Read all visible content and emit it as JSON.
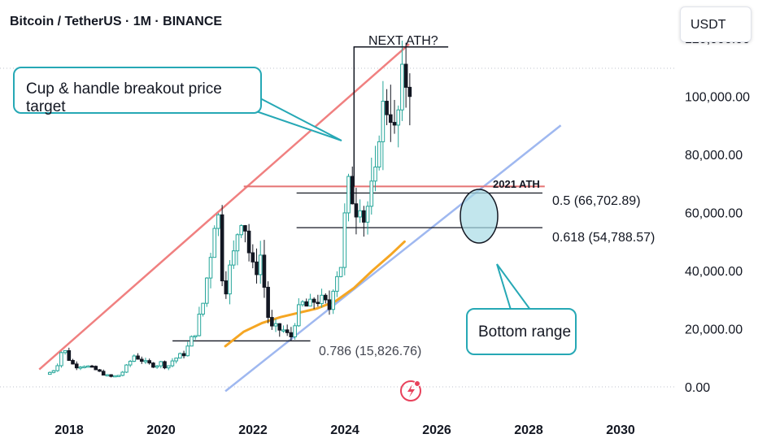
{
  "header": {
    "title": "Bitcoin / TetherUS · 1M · BINANCE",
    "currency": "USDT"
  },
  "annotations": {
    "cup_handle_label": "Cup & handle breakout price target",
    "bottom_range_label": "Bottom range",
    "next_ath_label": "NEXT ATH?",
    "ath_2021_label": "2021 ATH",
    "fib_05": "0.5 (66,702.89)",
    "fib_0618": "0.618 (54,788.57)",
    "fib_0786": "0.786 (15,826.76)"
  },
  "colors": {
    "candle_up": "#26a69a",
    "candle_down": "#131722",
    "resistance_line": "#f08080",
    "support_line": "#9fb8f0",
    "moving_average": "#f5a623",
    "ath_line": "#e57373",
    "callout_border": "#26a8b5",
    "highlight_circle": "#a8dbe6"
  },
  "chart_data": {
    "type": "candlestick",
    "title": "Bitcoin / TetherUS · 1M · BINANCE",
    "y_axis": {
      "ticks": [
        0,
        20000,
        40000,
        60000,
        80000,
        100000,
        120000
      ],
      "tick_labels": [
        "0.00",
        "20,000.00",
        "40,000.00",
        "60,000.00",
        "80,000.00",
        "100,000.00",
        "120,000.00"
      ],
      "ylim": [
        -2000,
        126000
      ]
    },
    "x_axis": {
      "ticks": [
        2018,
        2020,
        2022,
        2024,
        2026,
        2028,
        2030
      ],
      "tick_labels": [
        "2018",
        "2020",
        "2022",
        "2024",
        "2026",
        "2028",
        "2030"
      ],
      "xlim": [
        2017.3,
        2031.2
      ]
    },
    "price_path": [
      [
        2017.6,
        4300
      ],
      [
        2017.8,
        6400
      ],
      [
        2017.95,
        13800
      ],
      [
        2018.05,
        10200
      ],
      [
        2018.2,
        7000
      ],
      [
        2018.4,
        7500
      ],
      [
        2018.6,
        6400
      ],
      [
        2018.85,
        4200
      ],
      [
        2019.0,
        3500
      ],
      [
        2019.2,
        4100
      ],
      [
        2019.4,
        8500
      ],
      [
        2019.5,
        10800
      ],
      [
        2019.75,
        8300
      ],
      [
        2019.95,
        7200
      ],
      [
        2020.1,
        8500
      ],
      [
        2020.2,
        6400
      ],
      [
        2020.35,
        9400
      ],
      [
        2020.6,
        11600
      ],
      [
        2020.85,
        19700
      ],
      [
        2021.0,
        29000
      ],
      [
        2021.15,
        45000
      ],
      [
        2021.25,
        58800
      ],
      [
        2021.35,
        57700
      ],
      [
        2021.42,
        37300
      ],
      [
        2021.5,
        35000
      ],
      [
        2021.6,
        41500
      ],
      [
        2021.7,
        47100
      ],
      [
        2021.8,
        61300
      ],
      [
        2021.9,
        57000
      ],
      [
        2022.0,
        46300
      ],
      [
        2022.1,
        38500
      ],
      [
        2022.25,
        45500
      ],
      [
        2022.35,
        31800
      ],
      [
        2022.45,
        19900
      ],
      [
        2022.6,
        20000
      ],
      [
        2022.75,
        19400
      ],
      [
        2022.9,
        16500
      ],
      [
        2023.0,
        23100
      ],
      [
        2023.15,
        28500
      ],
      [
        2023.3,
        27200
      ],
      [
        2023.45,
        30500
      ],
      [
        2023.6,
        29200
      ],
      [
        2023.75,
        27000
      ],
      [
        2023.85,
        37700
      ],
      [
        2024.0,
        42500
      ],
      [
        2024.1,
        61100
      ],
      [
        2024.2,
        71300
      ],
      [
        2024.3,
        60600
      ],
      [
        2024.4,
        67500
      ],
      [
        2024.5,
        58000
      ],
      [
        2024.6,
        63300
      ],
      [
        2024.75,
        70200
      ],
      [
        2024.85,
        96400
      ],
      [
        2024.95,
        93400
      ],
      [
        2025.05,
        102400
      ],
      [
        2025.15,
        84300
      ],
      [
        2025.25,
        94200
      ],
      [
        2025.35,
        104600
      ],
      [
        2025.45,
        107200
      ]
    ],
    "moving_average": [
      [
        2021.4,
        14000
      ],
      [
        2021.8,
        19000
      ],
      [
        2022.2,
        22000
      ],
      [
        2022.6,
        24000
      ],
      [
        2023.0,
        25500
      ],
      [
        2023.4,
        27000
      ],
      [
        2023.8,
        29500
      ],
      [
        2024.2,
        34000
      ],
      [
        2024.6,
        40000
      ],
      [
        2025.0,
        45500
      ],
      [
        2025.3,
        50000
      ]
    ],
    "trendlines": [
      {
        "name": "resistance",
        "from": [
          2017.35,
          6000
        ],
        "to": [
          2025.4,
          118000
        ]
      },
      {
        "name": "support",
        "from": [
          2021.4,
          -1500
        ],
        "to": [
          2028.7,
          90000
        ]
      }
    ],
    "levels": [
      {
        "label": "2021 ATH",
        "value": 69000,
        "from": 2021.8,
        "to": 2028.35
      },
      {
        "label": "0.5 (66,702.89)",
        "value": 66702.89,
        "from": 2022.95,
        "to": 2028.3
      },
      {
        "label": "0.618 (54,788.57)",
        "value": 54788.57,
        "from": 2022.95,
        "to": 2028.3
      },
      {
        "label": "0.786 (15,826.76)",
        "value": 15826.76,
        "from": 2020.25,
        "to": 2023.25
      }
    ],
    "next_ath_box": {
      "x0": 2024.2,
      "x1": 2026.25,
      "top": 117000,
      "bottom": 69000
    }
  }
}
